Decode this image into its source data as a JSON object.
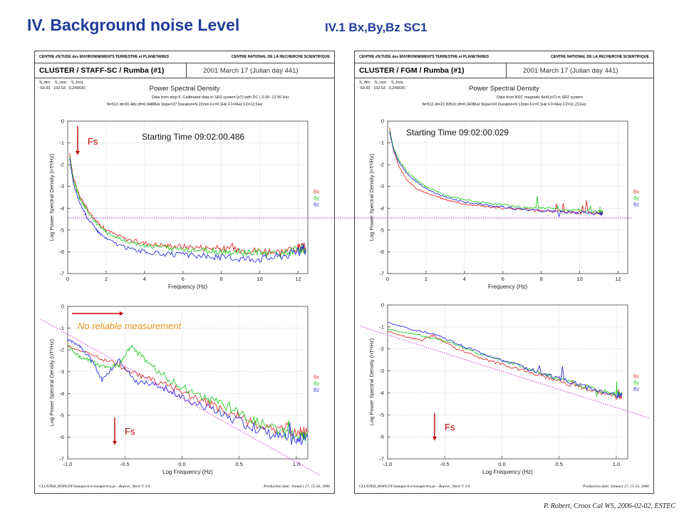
{
  "slide": {
    "title": "IV. Background noise Level",
    "subtitle": "IV.1  Bx,By,Bz  SC1",
    "credit": "P. Robert, Croos Cal WS, 2006-02-02, ESTEC"
  },
  "panels": [
    {
      "header_left": "CENTRE d'ETUDE des ENVIRONNEMENTS TERRESTRE et PLANETAIRES",
      "header_right": "CENTRE NATIONAL DE LA RECHERCHE SCIENTIFIQUE",
      "mission": "CLUSTER / STAFF-SC / Rumba  (#1)",
      "date": "2001 March 17  (Julian day 441)",
      "params_line1": "S_dec    S_rasc    S_freq",
      "params_line2": "-63.93   102.53   0.249630",
      "psd_title": "Power Spectral Density",
      "info1": "Data from step 5. Calibrated data in SR2 system [nT] with DC  ( 0.00-  12.50 Hz)",
      "info2": "N=512 dt=20.48s df=0.0488Hz Nspe=27 Duration=9.22min Fc=0.1Hz F1=0Hz F2=12.5Hz",
      "footer_left": "CLUSTER_ROPLOT/viasupectra/viasupectra.ps -  Roproc_Wave V 3.9",
      "footer_right": "Production date: January 27, 15:56, 2006",
      "start_time": "Starting Time  09:02:00.486",
      "fs_top": "Fs",
      "fs_bottom": "Fs",
      "no_reliable": "No reliable measurement"
    },
    {
      "header_left": "CENTRE d'ETUDE des ENVIRONNEMENTS TERRESTRE et PLANETAIRES",
      "header_right": "CENTRE NATIONAL DE LA RECHERCHE SCIENTIFIQUE",
      "mission": "CLUSTER / FGM / Rumba (#1)",
      "date": "2001 March 17  (Julian day 441)",
      "params_line1": "S_dec    S_rasc    S_freq",
      "params_line2": "-63.93   102.53   0.249630",
      "psd_title": "Power Spectral Density",
      "info1": "Data from BDC magnetic field [nT] in SR2 system",
      "info2": "N=512 dt=22.8352s df=0.0438Hz Nspe=24 Duration=9.13min Fc=0.1Hz F1=0Hz F2=11.211Hz",
      "footer_left": "CLUSTER_ROPLOT/viasupectra/viasupectra.ps -  Roproc_Wave V 3.9",
      "footer_right": "Production date: January 27, 15:55, 2006",
      "start_time": "Starting Time 09:02:00.029",
      "fs_bottom": "Fs"
    }
  ],
  "chart_data": [
    {
      "type": "line",
      "panel": "STAFF-SC",
      "xscale": "linear",
      "xlabel": "Frequency (Hz)",
      "ylabel": "Log Power Spectral Density (nT²/Hz)",
      "xlim": [
        0,
        12.5
      ],
      "ylim": [
        -7,
        0
      ],
      "xticks": [
        0,
        2,
        4,
        6,
        8,
        10,
        12
      ],
      "yticks": [
        0,
        -1,
        -2,
        -3,
        -4,
        -5,
        -6,
        -7
      ],
      "series": [
        {
          "name": "Bx",
          "color": "#e03030",
          "x": [
            0.1,
            0.3,
            0.6,
            1.0,
            1.5,
            2.0,
            3.0,
            4.0,
            5.0,
            6.0,
            7.0,
            8.0,
            9.0,
            10.0,
            11.0,
            12.0,
            12.4
          ],
          "y": [
            -1.5,
            -2.6,
            -3.4,
            -4.0,
            -4.6,
            -5.0,
            -5.4,
            -5.6,
            -5.7,
            -5.75,
            -5.8,
            -5.85,
            -5.9,
            -5.95,
            -6.0,
            -5.8,
            -5.8
          ]
        },
        {
          "name": "By",
          "color": "#22cc22",
          "x": [
            0.1,
            0.3,
            0.6,
            1.0,
            1.5,
            2.0,
            3.0,
            4.0,
            5.0,
            6.0,
            7.0,
            8.0,
            9.0,
            10.0,
            11.0,
            12.0,
            12.4
          ],
          "y": [
            -1.6,
            -2.7,
            -3.5,
            -4.1,
            -4.7,
            -5.1,
            -5.5,
            -5.7,
            -5.8,
            -5.9,
            -5.95,
            -6.0,
            -6.05,
            -6.05,
            -6.1,
            -5.9,
            -5.9
          ]
        },
        {
          "name": "Bz",
          "color": "#3030e0",
          "x": [
            0.1,
            0.3,
            0.6,
            1.0,
            1.5,
            2.0,
            3.0,
            4.0,
            5.0,
            6.0,
            7.0,
            8.0,
            9.0,
            10.0,
            11.0,
            12.0,
            12.4
          ],
          "y": [
            -1.7,
            -2.9,
            -3.7,
            -4.4,
            -5.0,
            -5.4,
            -5.8,
            -6.0,
            -6.1,
            -6.15,
            -6.2,
            -6.25,
            -6.3,
            -6.3,
            -6.2,
            -6.0,
            -5.9
          ]
        }
      ]
    },
    {
      "type": "line",
      "panel": "STAFF-SC",
      "xscale": "log10",
      "xlabel": "Log Frequency (Hz)",
      "ylabel": "Log Power Spectral Density (nT²/Hz)",
      "xlim": [
        -1.0,
        1.1
      ],
      "ylim": [
        -7,
        0
      ],
      "xticks": [
        -1.0,
        -0.5,
        0.0,
        0.5,
        1.0
      ],
      "yticks": [
        0,
        -1,
        -2,
        -3,
        -4,
        -5,
        -6,
        -7
      ],
      "series": [
        {
          "name": "Bx",
          "color": "#e03030",
          "x": [
            -1.0,
            -0.8,
            -0.6,
            -0.4,
            -0.2,
            0.0,
            0.2,
            0.4,
            0.6,
            0.8,
            1.0,
            1.1
          ],
          "y": [
            -1.8,
            -2.2,
            -2.6,
            -3.1,
            -3.5,
            -3.9,
            -4.4,
            -4.9,
            -5.3,
            -5.6,
            -5.8,
            -5.8
          ]
        },
        {
          "name": "By",
          "color": "#22cc22",
          "x": [
            -1.0,
            -0.9,
            -0.8,
            -0.7,
            -0.55,
            -0.45,
            -0.3,
            -0.1,
            0.1,
            0.3,
            0.5,
            0.7,
            0.9,
            1.05,
            1.1
          ],
          "y": [
            -1.8,
            -2.3,
            -2.5,
            -2.8,
            -2.7,
            -1.8,
            -2.6,
            -3.4,
            -4.0,
            -4.4,
            -4.9,
            -5.4,
            -5.8,
            -6.0,
            -5.9
          ]
        },
        {
          "name": "Bz",
          "color": "#3030e0",
          "x": [
            -1.0,
            -0.9,
            -0.8,
            -0.7,
            -0.55,
            -0.4,
            -0.2,
            0.0,
            0.2,
            0.4,
            0.6,
            0.8,
            1.0,
            1.1
          ],
          "y": [
            -1.5,
            -1.8,
            -2.4,
            -3.4,
            -2.5,
            -3.5,
            -3.6,
            -4.2,
            -4.6,
            -5.1,
            -5.5,
            -5.9,
            -6.2,
            -6.0
          ]
        }
      ]
    },
    {
      "type": "line",
      "panel": "FGM",
      "xscale": "linear",
      "xlabel": "Frequency (Hz)",
      "ylabel": "Log Power Spectral Density (nT²/Hz)",
      "xlim": [
        0,
        12.5
      ],
      "ylim": [
        -7,
        0
      ],
      "xticks": [
        0,
        2,
        4,
        6,
        8,
        10,
        12
      ],
      "yticks": [
        0,
        -1,
        -2,
        -3,
        -4,
        -5,
        -6,
        -7
      ],
      "series": [
        {
          "name": "Bx",
          "color": "#e03030",
          "x": [
            0.1,
            0.3,
            0.6,
            1.0,
            1.5,
            2.0,
            3.0,
            4.0,
            5.0,
            6.0,
            7.0,
            8.0,
            9.0,
            10.0,
            11.0,
            11.2
          ],
          "y": [
            -0.3,
            -1.3,
            -2.1,
            -2.7,
            -3.1,
            -3.3,
            -3.6,
            -3.8,
            -3.9,
            -4.0,
            -4.05,
            -4.1,
            -4.15,
            -4.2,
            -4.2,
            -4.2
          ]
        },
        {
          "name": "By",
          "color": "#22cc22",
          "x": [
            0.1,
            0.3,
            0.6,
            1.0,
            1.5,
            2.0,
            3.0,
            4.0,
            5.0,
            6.0,
            7.0,
            8.0,
            9.0,
            10.0,
            11.0,
            11.2
          ],
          "y": [
            -0.4,
            -1.2,
            -1.8,
            -2.3,
            -2.7,
            -3.0,
            -3.4,
            -3.6,
            -3.75,
            -3.85,
            -3.95,
            -4.0,
            -4.05,
            -4.1,
            -4.15,
            -4.15
          ]
        },
        {
          "name": "Bz",
          "color": "#3030e0",
          "x": [
            0.1,
            0.3,
            0.6,
            1.0,
            1.5,
            2.0,
            3.0,
            4.0,
            5.0,
            6.0,
            7.0,
            8.0,
            9.0,
            10.0,
            11.0,
            11.2
          ],
          "y": [
            -0.5,
            -1.3,
            -1.9,
            -2.4,
            -2.8,
            -3.1,
            -3.5,
            -3.7,
            -3.85,
            -3.95,
            -4.05,
            -4.1,
            -4.15,
            -4.2,
            -4.25,
            -4.25
          ]
        }
      ]
    },
    {
      "type": "line",
      "panel": "FGM",
      "xscale": "log10",
      "xlabel": "Log Frequency (Hz)",
      "ylabel": "Log Power Spectral Density (nT²/Hz)",
      "xlim": [
        -1.0,
        1.1
      ],
      "ylim": [
        -7,
        0
      ],
      "xticks": [
        -1.0,
        -0.5,
        0.0,
        0.5,
        1.0
      ],
      "yticks": [
        0,
        -1,
        -2,
        -3,
        -4,
        -5,
        -6,
        -7
      ],
      "series": [
        {
          "name": "Bx",
          "color": "#e03030",
          "x": [
            -1.0,
            -0.8,
            -0.7,
            -0.6,
            -0.4,
            -0.2,
            0.0,
            0.2,
            0.4,
            0.6,
            0.8,
            1.0,
            1.05
          ],
          "y": [
            -1.2,
            -1.5,
            -1.6,
            -1.4,
            -2.0,
            -2.4,
            -2.7,
            -3.0,
            -3.3,
            -3.6,
            -3.9,
            -4.2,
            -4.2
          ]
        },
        {
          "name": "By",
          "color": "#22cc22",
          "x": [
            -1.0,
            -0.8,
            -0.6,
            -0.4,
            -0.2,
            0.0,
            0.2,
            0.4,
            0.6,
            0.8,
            1.0,
            1.05
          ],
          "y": [
            -1.1,
            -1.3,
            -1.5,
            -1.8,
            -2.2,
            -2.5,
            -2.85,
            -3.2,
            -3.5,
            -3.8,
            -4.05,
            -4.05
          ]
        },
        {
          "name": "Bz",
          "color": "#3030e0",
          "x": [
            -1.0,
            -0.8,
            -0.6,
            -0.4,
            -0.2,
            0.0,
            0.2,
            0.4,
            0.6,
            0.8,
            1.0,
            1.05
          ],
          "y": [
            -0.8,
            -1.1,
            -1.3,
            -1.75,
            -2.15,
            -2.5,
            -2.85,
            -3.2,
            -3.5,
            -3.85,
            -4.1,
            -4.1
          ]
        }
      ]
    }
  ]
}
